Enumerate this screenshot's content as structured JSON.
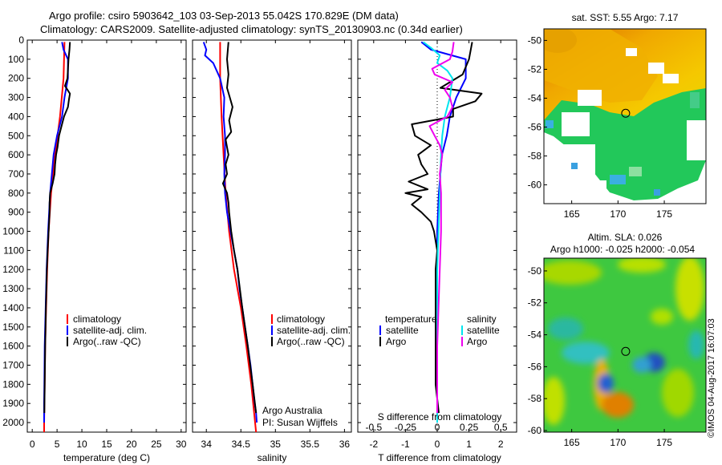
{
  "header": {
    "title1": "Argo profile: csiro 5903642_103 03-Sep-2013 55.042S 170.829E (DM data)",
    "title2": "Climatology: CARS2009. Satellite-adjusted climatology: synTS_20130903.nc (0.34d earlier)"
  },
  "colors": {
    "clim": "#ff0000",
    "sat": "#0000ff",
    "argo": "#000000",
    "sat_s": "#00e5ee",
    "argo_s": "#ee00ee"
  },
  "chart_data": [
    {
      "type": "line",
      "name": "temperature",
      "xlabel": "temperature (deg C)",
      "ylabel": "",
      "xlim": [
        -1,
        31
      ],
      "ylim": [
        0,
        2050
      ],
      "xticks": [
        0,
        5,
        10,
        15,
        20,
        25,
        30
      ],
      "yticks": [
        0,
        100,
        200,
        300,
        400,
        500,
        600,
        700,
        800,
        900,
        1000,
        1100,
        1200,
        1300,
        1400,
        1500,
        1600,
        1700,
        1800,
        1900,
        2000
      ],
      "legend": [
        "climatology",
        "satellite-adj. clim.",
        "Argo(..raw -QC)"
      ],
      "series": [
        {
          "name": "climatology",
          "color": "#ff0000",
          "depth": [
            10,
            200,
            400,
            600,
            800,
            1000,
            1200,
            1400,
            1600,
            1800,
            2000,
            2050
          ],
          "values": [
            6.5,
            6.3,
            5.6,
            4.6,
            3.8,
            3.3,
            3.0,
            2.8,
            2.6,
            2.5,
            2.4,
            2.4
          ]
        },
        {
          "name": "satellite-adj. clim.",
          "color": "#0000ff",
          "depth": [
            10,
            50,
            100,
            200,
            300,
            400,
            500,
            600,
            800,
            1000,
            1200,
            1400,
            1600,
            1800,
            1900,
            2000
          ],
          "values": [
            6.0,
            6.3,
            7.2,
            7.2,
            6.5,
            6.0,
            5.0,
            4.3,
            3.6,
            3.2,
            2.9,
            2.7,
            2.5,
            2.45,
            2.4,
            2.4
          ]
        },
        {
          "name": "Argo(..raw -QC)",
          "color": "#000000",
          "depth": [
            10,
            50,
            100,
            200,
            240,
            280,
            310,
            350,
            400,
            450,
            500,
            560,
            600,
            650,
            700,
            750,
            800,
            850,
            900,
            1000,
            1100,
            1200,
            1400,
            1600,
            1800,
            1950
          ],
          "values": [
            7.6,
            7.5,
            7.3,
            7.1,
            6.6,
            7.6,
            7.4,
            7.2,
            6.4,
            5.9,
            5.4,
            5.1,
            4.8,
            4.6,
            4.5,
            4.1,
            3.6,
            3.5,
            3.5,
            3.3,
            3.1,
            2.95,
            2.75,
            2.6,
            2.5,
            2.45
          ]
        }
      ]
    },
    {
      "type": "line",
      "name": "salinity",
      "xlabel": "salinity",
      "ylabel": "",
      "xlim": [
        33.8,
        36.1
      ],
      "ylim": [
        0,
        2050
      ],
      "xticks": [
        34,
        34.5,
        35,
        35.5,
        36
      ],
      "legend": [
        "climatology",
        "satellite-adj. clim.",
        "Argo(..raw -QC)"
      ],
      "annotations": [
        "Argo Australia",
        "PI: Susan Wijffels"
      ],
      "series": [
        {
          "name": "climatology",
          "color": "#ff0000",
          "depth": [
            10,
            200,
            400,
            600,
            800,
            1000,
            1200,
            1400,
            1600,
            1800,
            2050
          ],
          "values": [
            34.2,
            34.2,
            34.22,
            34.25,
            34.28,
            34.33,
            34.4,
            34.5,
            34.58,
            34.65,
            34.72
          ]
        },
        {
          "name": "satellite-adj. clim.",
          "color": "#0000ff",
          "depth": [
            10,
            50,
            80,
            120,
            200,
            300,
            400,
            500,
            600,
            700,
            800,
            900,
            1000,
            1100,
            1200,
            1300,
            1400,
            1500,
            1600,
            1700,
            1800,
            1900,
            1950,
            2000
          ],
          "values": [
            33.96,
            34.0,
            33.98,
            34.1,
            34.2,
            34.26,
            34.25,
            34.27,
            34.27,
            34.26,
            34.27,
            34.3,
            34.35,
            34.4,
            34.45,
            34.48,
            34.52,
            34.56,
            34.6,
            34.64,
            34.67,
            34.7,
            34.72,
            34.73
          ]
        },
        {
          "name": "Argo(..raw -QC)",
          "color": "#000000",
          "depth": [
            10,
            100,
            180,
            250,
            300,
            350,
            420,
            480,
            520,
            560,
            600,
            650,
            700,
            750,
            800,
            850,
            900,
            1000,
            1100,
            1200,
            1400,
            1600,
            1800,
            1950
          ],
          "values": [
            34.32,
            34.3,
            34.32,
            34.3,
            34.34,
            34.38,
            34.33,
            34.36,
            34.28,
            34.3,
            34.32,
            34.28,
            34.3,
            34.24,
            34.3,
            34.32,
            34.33,
            34.36,
            34.4,
            34.45,
            34.52,
            34.6,
            34.67,
            34.72
          ]
        }
      ]
    },
    {
      "type": "line",
      "name": "difference",
      "xlabel": "T difference from climatology",
      "xlabel_top": "S difference from climatology",
      "xlim": [
        -2.5,
        2.5
      ],
      "ylim": [
        0,
        2050
      ],
      "xticks": [
        -2,
        -1,
        0,
        1,
        2
      ],
      "xticks_top": [
        -0.5,
        -0.25,
        0,
        0.25,
        0.5
      ],
      "legend": {
        "temperature_title": "temperature",
        "salinity_title": "salinity",
        "labels": [
          "satellite",
          "Argo",
          "satellite",
          "Argo"
        ]
      },
      "series": [
        {
          "name": "temperature satellite",
          "color": "#0000ff",
          "depth": [
            10,
            50,
            100,
            200,
            300,
            400,
            500,
            600,
            700,
            800,
            1000,
            1200,
            1500,
            1800,
            2000
          ],
          "values": [
            -0.5,
            -0.2,
            0.9,
            0.9,
            0.6,
            0.4,
            0.3,
            0.15,
            0.1,
            0.05,
            0.0,
            0.0,
            0.0,
            0.0,
            0.0
          ]
        },
        {
          "name": "temperature Argo",
          "color": "#000000",
          "depth": [
            10,
            100,
            180,
            220,
            250,
            280,
            320,
            360,
            400,
            440,
            500,
            550,
            600,
            650,
            700,
            740,
            780,
            800,
            820,
            860,
            900,
            950,
            1000,
            1100,
            1200,
            1400,
            1600,
            1800,
            1950
          ],
          "values": [
            1.1,
            1.0,
            0.8,
            0.4,
            0.1,
            1.4,
            1.2,
            0.5,
            0.5,
            -0.8,
            -0.7,
            -0.2,
            -0.6,
            -0.5,
            -0.3,
            -0.9,
            -0.3,
            -1.0,
            -0.5,
            -0.8,
            -0.5,
            -0.2,
            -0.1,
            0.0,
            -0.05,
            -0.05,
            -0.05,
            -0.05,
            0.05
          ]
        },
        {
          "name": "salinity satellite",
          "color": "#00e5ee",
          "depth": [
            10,
            40,
            80,
            120,
            160,
            200,
            300,
            400,
            500,
            600,
            800,
            1000,
            1200,
            1500,
            1800,
            2000
          ],
          "values": [
            -0.11,
            -0.05,
            0.02,
            0.0,
            0.08,
            0.12,
            0.1,
            0.06,
            0.04,
            0.03,
            0.02,
            0.01,
            0.0,
            0.0,
            0.0,
            0.0
          ]
        },
        {
          "name": "salinity Argo",
          "color": "#ee00ee",
          "depth": [
            10,
            60,
            100,
            150,
            180,
            220,
            260,
            300,
            350,
            400,
            450,
            500,
            550,
            600,
            700,
            800,
            900,
            1000,
            1200,
            1400,
            1600,
            1800,
            1950
          ],
          "values": [
            0.13,
            0.12,
            0.1,
            -0.04,
            -0.02,
            0.12,
            0.06,
            0.1,
            0.12,
            0.08,
            -0.06,
            -0.02,
            0.02,
            0.04,
            0.02,
            0.03,
            0.03,
            0.03,
            0.02,
            0.01,
            0.0,
            0.0,
            0.0
          ]
        }
      ]
    },
    {
      "type": "heatmap",
      "name": "sst-map",
      "title": "sat. SST: 5.55 Argo: 7.17",
      "xlim": [
        162,
        179.5
      ],
      "ylim": [
        -61.3,
        -49.2
      ],
      "xticks": [
        165,
        170,
        175
      ],
      "yticks": [
        -50,
        -52,
        -54,
        -56,
        -58,
        -60
      ],
      "marker": {
        "lon": 170.829,
        "lat": -55.042
      }
    },
    {
      "type": "heatmap",
      "name": "sla-map",
      "title1": "Altim. SLA: 0.026",
      "title2": "Argo h1000: -0.025 h2000: -0.054",
      "xlim": [
        162,
        179.5
      ],
      "ylim": [
        -60.1,
        -49.2
      ],
      "xticks": [
        165,
        170,
        175
      ],
      "yticks": [
        -50,
        -52,
        -54,
        -56,
        -58,
        -60
      ],
      "marker": {
        "lon": 170.829,
        "lat": -55.042
      }
    }
  ],
  "footer": {
    "stamp": "©IMOS 04-Aug-2017 16:07:03"
  }
}
